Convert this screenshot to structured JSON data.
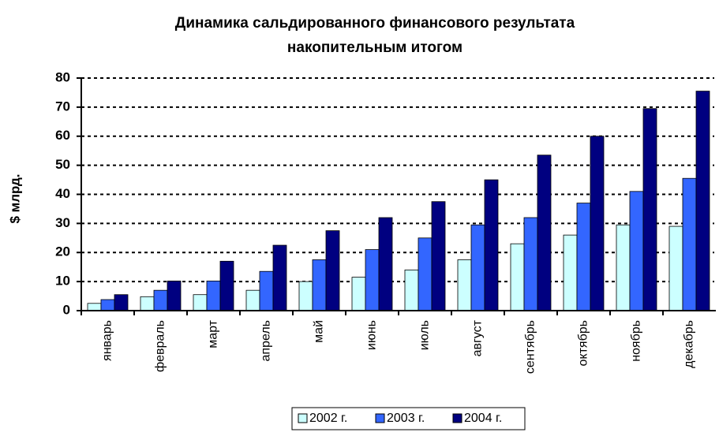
{
  "chart_data": {
    "type": "bar",
    "title": [
      "Динамика сальдированного финансового результата",
      "накопительным итогом"
    ],
    "y_label": "$ млрд.",
    "categories": [
      "январь",
      "февраль",
      "март",
      "апрель",
      "май",
      "июнь",
      "июль",
      "август",
      "сентябрь",
      "октябрь",
      "ноябрь",
      "декабрь"
    ],
    "series": [
      {
        "name": "2002 г.",
        "color": "#ccffff",
        "values": [
          2.5,
          4.8,
          5.5,
          7,
          10,
          11.5,
          14,
          17.5,
          23,
          26,
          29.5,
          29
        ]
      },
      {
        "name": "2003 г.",
        "color": "#3366ff",
        "values": [
          3.8,
          7,
          10.2,
          13.5,
          17.5,
          21,
          25,
          29.5,
          32,
          37,
          41,
          45.5
        ]
      },
      {
        "name": "2004 г.",
        "color": "#000080",
        "values": [
          5.5,
          10.2,
          17,
          22.5,
          27.5,
          32,
          37.5,
          45,
          53.5,
          60,
          69.5,
          75.5
        ]
      }
    ],
    "ylim": [
      0,
      80
    ],
    "yticks": [
      0,
      10,
      20,
      30,
      40,
      50,
      60,
      70,
      80
    ],
    "grid": true,
    "legend": "bottom"
  }
}
